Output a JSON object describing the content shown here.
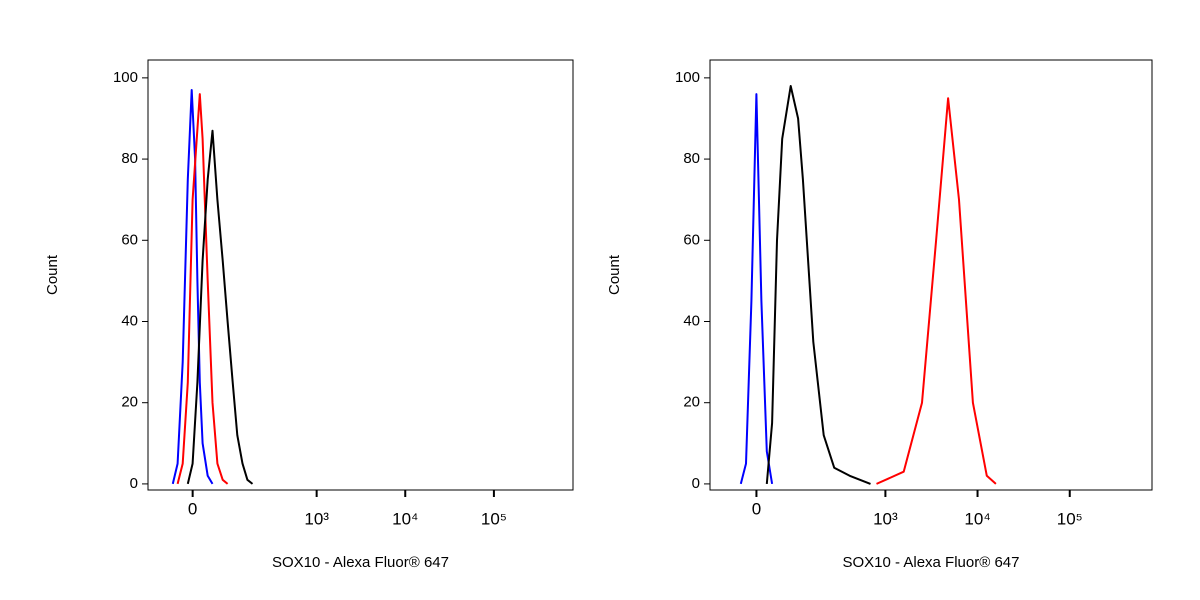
{
  "chart_data": [
    {
      "type": "line",
      "xlabel": "SOX10 - Alexa Fluor® 647",
      "ylabel": "Count",
      "xscale": "biexponential",
      "xlim": [
        -115,
        780000
      ],
      "ylim": [
        -1.5,
        104.4
      ],
      "xticks": [
        0,
        {
          "value": 1000,
          "label": "10³"
        },
        {
          "value": 10000,
          "label": "10⁴"
        },
        {
          "value": 100000,
          "label": "10⁵"
        }
      ],
      "yticks": [
        0,
        20,
        40,
        60,
        80,
        100
      ],
      "series": [
        {
          "color": "#0000ff",
          "x": [
            -43,
            -32,
            -21,
            -10,
            -2,
            5,
            10,
            15,
            21,
            32,
            43
          ],
          "values": [
            0,
            5,
            30,
            75,
            97,
            80,
            50,
            25,
            10,
            2,
            0
          ]
        },
        {
          "color": "#ff0000",
          "x": [
            -32,
            -21,
            -10,
            0,
            15,
            21,
            32,
            43,
            55,
            69,
            83
          ],
          "values": [
            0,
            5,
            25,
            70,
            96,
            85,
            50,
            20,
            5,
            1,
            0
          ]
        },
        {
          "color": "#000000",
          "x": [
            -10,
            0,
            10,
            21,
            32,
            43,
            55,
            69,
            83,
            99,
            115,
            135,
            156,
            181
          ],
          "values": [
            0,
            5,
            25,
            55,
            75,
            87,
            70,
            55,
            40,
            25,
            12,
            5,
            1,
            0
          ]
        }
      ]
    },
    {
      "type": "line",
      "xlabel": "SOX10 - Alexa Fluor® 647",
      "ylabel": "Count",
      "xscale": "biexponential",
      "xlim": [
        -115,
        780000
      ],
      "ylim": [
        -1.5,
        104.4
      ],
      "xticks": [
        0,
        {
          "value": 1000,
          "label": "10³"
        },
        {
          "value": 10000,
          "label": "10⁴"
        },
        {
          "value": 100000,
          "label": "10⁵"
        }
      ],
      "yticks": [
        0,
        20,
        40,
        60,
        80,
        100
      ],
      "series": [
        {
          "color": "#0000ff",
          "x": [
            -32,
            -21,
            -10,
            0,
            10,
            21,
            32
          ],
          "values": [
            0,
            5,
            45,
            96,
            45,
            8,
            0
          ]
        },
        {
          "color": "#000000",
          "x": [
            21,
            32,
            43,
            55,
            77,
            99,
            115,
            156,
            207,
            273,
            407,
            688
          ],
          "values": [
            0,
            15,
            60,
            85,
            98,
            90,
            75,
            35,
            12,
            4,
            2,
            0
          ]
        },
        {
          "color": "#ff0000",
          "x": [
            800,
            1580,
            2500,
            3550,
            4800,
            6300,
            8900,
            12600,
            15800
          ],
          "values": [
            0,
            3,
            20,
            60,
            95,
            70,
            20,
            2,
            0
          ]
        }
      ]
    }
  ]
}
